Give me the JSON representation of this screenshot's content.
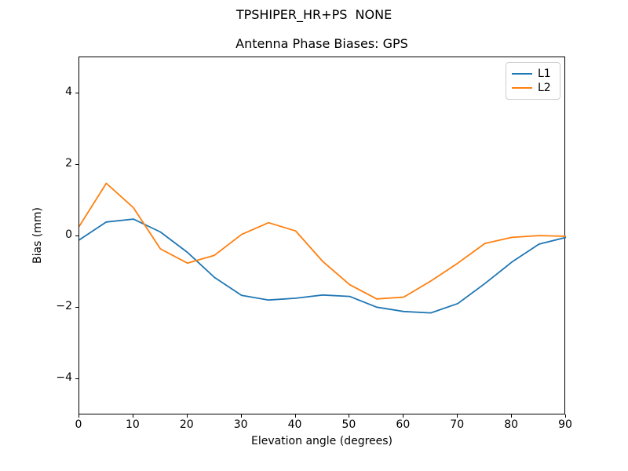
{
  "suptitle": "TPSHIPER_HR+PS  NONE",
  "chart_data": {
    "type": "line",
    "title": "Antenna Phase Biases: GPS",
    "xlabel": "Elevation angle (degrees)",
    "ylabel": "Bias (mm)",
    "xlim": [
      0,
      90
    ],
    "ylim": [
      -5,
      5
    ],
    "xticks": [
      0,
      10,
      20,
      30,
      40,
      50,
      60,
      70,
      80,
      90
    ],
    "yticks": [
      -4,
      -2,
      0,
      2,
      4
    ],
    "grid": false,
    "legend_position": "upper right",
    "x": [
      0,
      5,
      10,
      15,
      20,
      25,
      30,
      35,
      40,
      45,
      50,
      55,
      60,
      65,
      70,
      75,
      80,
      85,
      90
    ],
    "series": [
      {
        "name": "L1",
        "color": "#1f77b4",
        "values": [
          -0.1,
          0.4,
          0.48,
          0.12,
          -0.45,
          -1.15,
          -1.65,
          -1.78,
          -1.73,
          -1.64,
          -1.68,
          -1.98,
          -2.1,
          -2.14,
          -1.88,
          -1.32,
          -0.72,
          -0.22,
          -0.03
        ]
      },
      {
        "name": "L2",
        "color": "#ff7f0e",
        "values": [
          0.28,
          1.48,
          0.8,
          -0.35,
          -0.75,
          -0.53,
          0.05,
          0.38,
          0.15,
          -0.7,
          -1.35,
          -1.75,
          -1.7,
          -1.25,
          -0.75,
          -0.2,
          -0.03,
          0.02,
          0.0
        ]
      }
    ]
  }
}
